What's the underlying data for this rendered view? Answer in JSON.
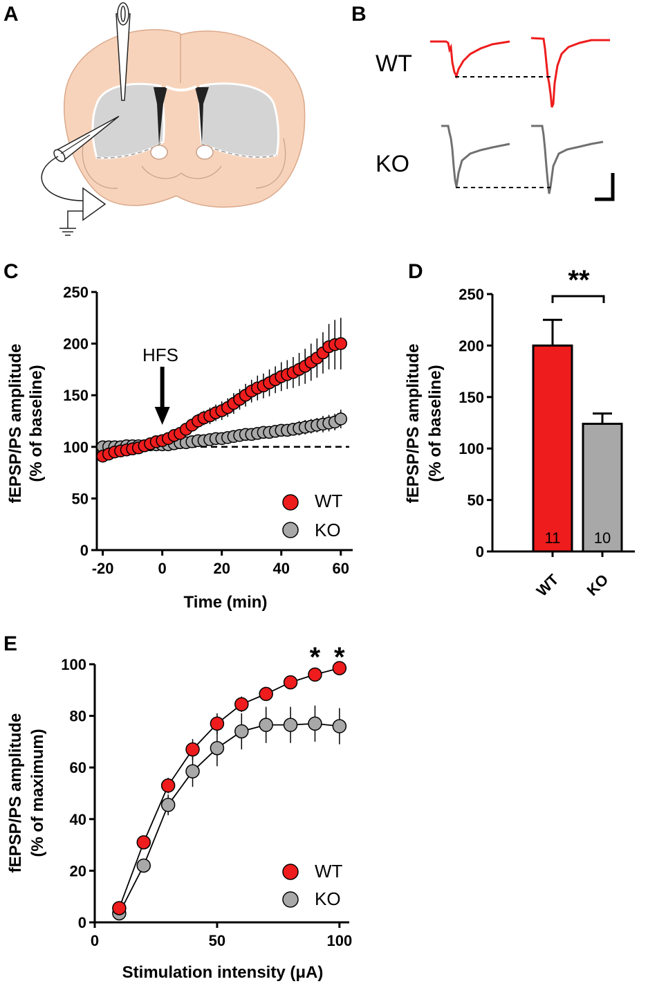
{
  "panels": {
    "A": "A",
    "B": "B",
    "C": "C",
    "D": "D",
    "E": "E"
  },
  "colors": {
    "wt": "#ee1c1c",
    "ko": "#a8a8a8",
    "ko_trace": "#707070",
    "brain": "#f7d3bb",
    "striatum": "#d4d4d4"
  },
  "panelB": {
    "wt_label": "WT",
    "ko_label": "KO"
  },
  "chart_data": [
    {
      "panel": "C",
      "type": "scatter",
      "title": "",
      "xlabel": "Time (min)",
      "ylabel_line1": "fEPSP/PS amplitude",
      "ylabel_line2": "(% of baseline)",
      "xlim": [
        -22,
        64
      ],
      "ylim": [
        0,
        250
      ],
      "xticks": [
        -20,
        0,
        20,
        40,
        60
      ],
      "yticks": [
        0,
        50,
        100,
        150,
        200,
        250
      ],
      "baseline": 100,
      "annotation": "HFS",
      "annotation_x": 0,
      "legend": [
        "WT",
        "KO"
      ],
      "legend_position": "bottom-right",
      "series": [
        {
          "name": "WT",
          "x": [
            -20,
            -18,
            -16,
            -14,
            -12,
            -10,
            -8,
            -6,
            -4,
            -2,
            0,
            2,
            4,
            6,
            8,
            10,
            12,
            14,
            16,
            18,
            20,
            22,
            24,
            26,
            28,
            30,
            32,
            34,
            36,
            38,
            40,
            42,
            44,
            46,
            48,
            50,
            52,
            54,
            56,
            58,
            60
          ],
          "y": [
            91,
            93,
            95,
            96,
            97,
            98,
            99,
            101,
            103,
            105,
            106,
            108,
            111,
            113,
            117,
            121,
            125,
            128,
            130,
            133,
            135,
            138,
            142,
            146,
            150,
            154,
            157,
            159,
            162,
            165,
            168,
            170,
            172,
            175,
            178,
            182,
            186,
            191,
            197,
            199,
            200
          ],
          "err": [
            3,
            3,
            3,
            3,
            3,
            3,
            3,
            3,
            3,
            4,
            4,
            5,
            5,
            5,
            6,
            6,
            7,
            7,
            8,
            8,
            9,
            9,
            10,
            10,
            11,
            11,
            12,
            12,
            13,
            13,
            14,
            14,
            15,
            16,
            17,
            18,
            19,
            20,
            22,
            24,
            25
          ]
        },
        {
          "name": "KO",
          "x": [
            -20,
            -18,
            -16,
            -14,
            -12,
            -10,
            -8,
            -6,
            -4,
            -2,
            0,
            2,
            4,
            6,
            8,
            10,
            12,
            14,
            16,
            18,
            20,
            22,
            24,
            26,
            28,
            30,
            32,
            34,
            36,
            38,
            40,
            42,
            44,
            46,
            48,
            50,
            52,
            54,
            56,
            58,
            60
          ],
          "y": [
            100,
            100,
            100,
            100,
            101,
            101,
            101,
            101,
            102,
            102,
            102,
            102,
            103,
            104,
            104,
            105,
            106,
            106,
            107,
            108,
            108,
            109,
            110,
            111,
            112,
            112,
            113,
            114,
            114,
            115,
            116,
            116,
            117,
            118,
            119,
            120,
            121,
            122,
            123,
            124,
            127
          ],
          "err": [
            2,
            2,
            2,
            2,
            2,
            2,
            2,
            2,
            2,
            2,
            2,
            3,
            3,
            3,
            3,
            3,
            3,
            4,
            4,
            4,
            4,
            4,
            5,
            5,
            5,
            5,
            5,
            5,
            6,
            6,
            6,
            6,
            6,
            7,
            7,
            7,
            7,
            8,
            8,
            8,
            9
          ]
        }
      ]
    },
    {
      "panel": "D",
      "type": "bar",
      "ylabel_line1": "fEPSP/PS amplitude",
      "ylabel_line2": "(% of baseline)",
      "categories": [
        "WT",
        "KO"
      ],
      "values": [
        200,
        124
      ],
      "errors": [
        25,
        10
      ],
      "n": [
        "11",
        "10"
      ],
      "ylim": [
        0,
        250
      ],
      "yticks": [
        0,
        50,
        100,
        150,
        200,
        250
      ],
      "significance": "**"
    },
    {
      "panel": "E",
      "type": "line",
      "xlabel": "Stimulation intensity (μA)",
      "ylabel_line1": "fEPSP/PS amplitude",
      "ylabel_line2": "(% of maximum)",
      "xlim": [
        0,
        104
      ],
      "ylim": [
        0,
        100
      ],
      "xticks": [
        0,
        50,
        100
      ],
      "yticks": [
        0,
        20,
        40,
        60,
        80,
        100
      ],
      "legend": [
        "WT",
        "KO"
      ],
      "legend_position": "bottom-right",
      "significance_marks": [
        {
          "x": 90,
          "label": "*"
        },
        {
          "x": 100,
          "label": "*"
        }
      ],
      "series": [
        {
          "name": "WT",
          "x": [
            10,
            20,
            30,
            40,
            50,
            60,
            70,
            80,
            90,
            100
          ],
          "y": [
            5.5,
            31,
            53,
            67,
            77,
            84.5,
            88.5,
            93,
            96,
            98.5
          ],
          "err": [
            1,
            2,
            3,
            4,
            4,
            3,
            2,
            1.5,
            1,
            0.5
          ]
        },
        {
          "name": "KO",
          "x": [
            10,
            20,
            30,
            40,
            50,
            60,
            70,
            80,
            90,
            100
          ],
          "y": [
            3.5,
            22,
            45.5,
            58.5,
            67.5,
            74,
            76.5,
            76.5,
            77,
            76
          ],
          "err": [
            1,
            2,
            4,
            6,
            7,
            7,
            7,
            7,
            7,
            7
          ]
        }
      ]
    }
  ]
}
